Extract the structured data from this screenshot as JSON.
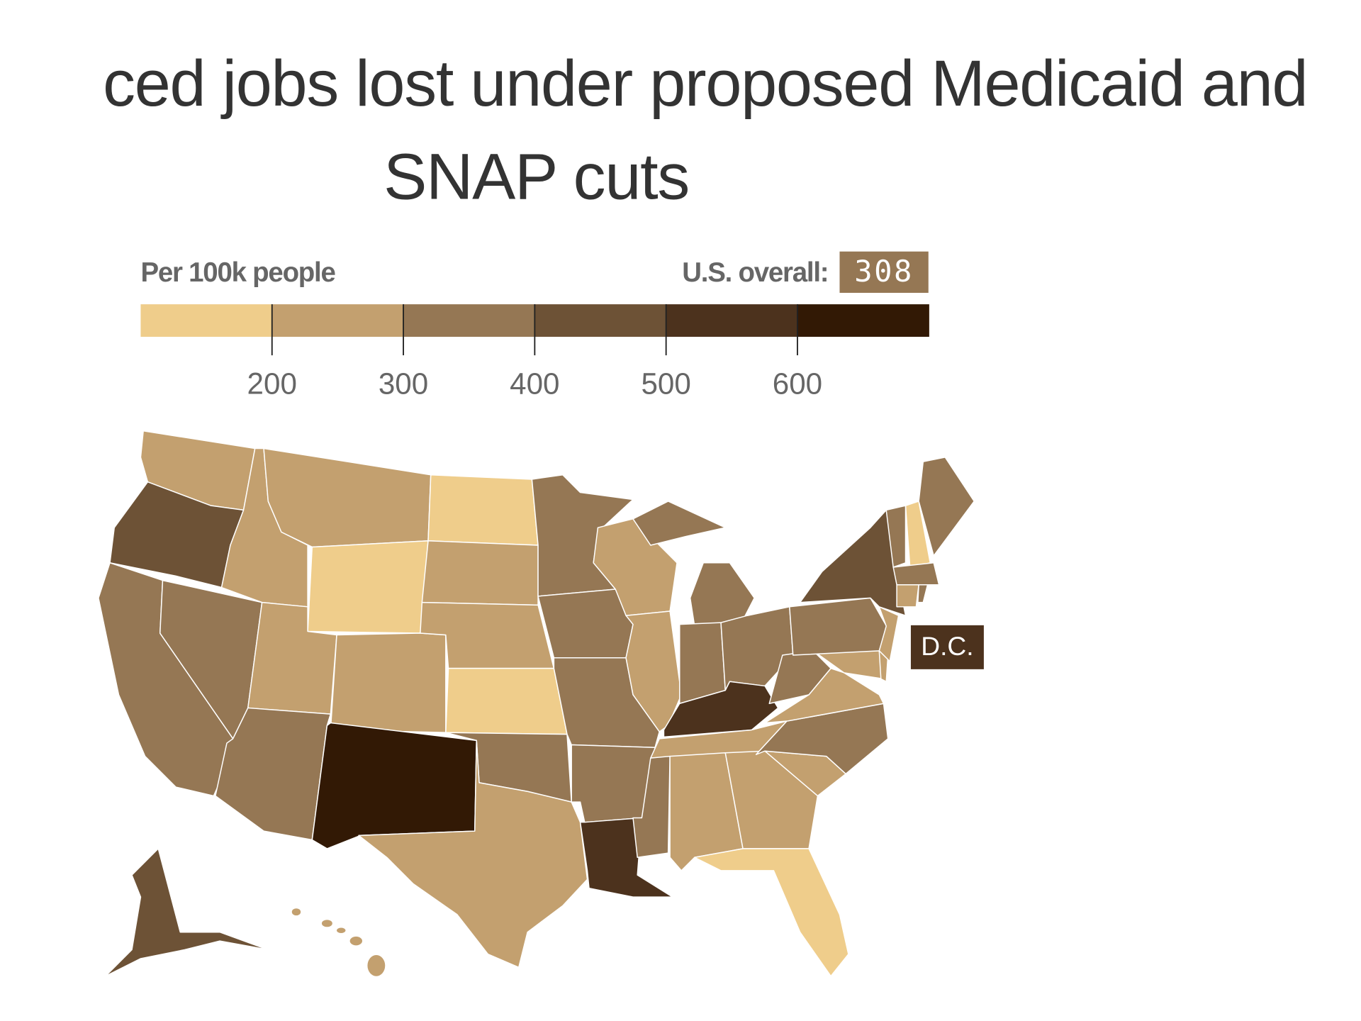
{
  "title": {
    "line1": "ced jobs lost under proposed Medicaid and",
    "line2": "SNAP cuts"
  },
  "legend": {
    "label": "Per 100k people",
    "overall_label": "U.S. overall:",
    "overall_value": "308",
    "ticks": [
      "200",
      "300",
      "400",
      "500",
      "600"
    ]
  },
  "dc_label": "D.C.",
  "chart_data": {
    "type": "choropleth",
    "unit": "Per 100k people",
    "bins": [
      {
        "range": "<200",
        "color": "#efcd8b"
      },
      {
        "range": "200–300",
        "color": "#c3a06f"
      },
      {
        "range": "300–400",
        "color": "#957754"
      },
      {
        "range": "400–500",
        "color": "#6d5236"
      },
      {
        "range": "500–600",
        "color": "#4c321d"
      },
      {
        "range": "600+",
        "color": "#321905"
      }
    ],
    "us_overall": 308,
    "states": {
      "WA": 1,
      "OR": 3,
      "CA": 2,
      "NV": 2,
      "ID": 1,
      "MT": 1,
      "WY": 0,
      "UT": 1,
      "AZ": 2,
      "NM": 5,
      "CO": 1,
      "ND": 0,
      "SD": 1,
      "NE": 1,
      "KS": 0,
      "OK": 2,
      "TX": 1,
      "MN": 2,
      "IA": 2,
      "MO": 2,
      "AR": 2,
      "LA": 4,
      "WI": 1,
      "IL": 1,
      "MI": 2,
      "IN": 2,
      "OH": 2,
      "KY": 4,
      "TN": 1,
      "MS": 2,
      "AL": 1,
      "GA": 1,
      "FL": 0,
      "SC": 1,
      "NC": 2,
      "VA": 1,
      "WV": 2,
      "MD": 1,
      "DE": 1,
      "PA": 2,
      "NJ": 1,
      "NY": 3,
      "CT": 1,
      "RI": 2,
      "MA": 2,
      "VT": 2,
      "NH": 0,
      "ME": 2,
      "AK": 3,
      "HI": 1,
      "DC": 4
    }
  }
}
